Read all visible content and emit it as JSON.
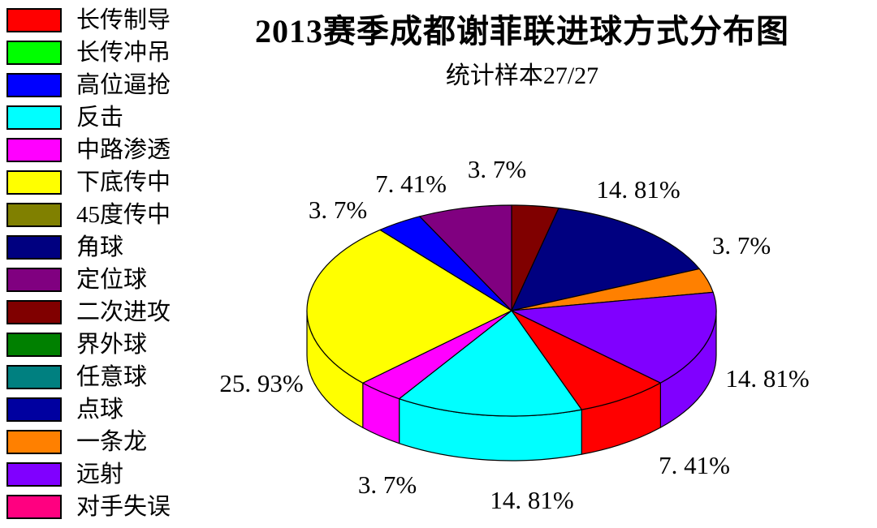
{
  "page": {
    "background": "#FFFFFF"
  },
  "chart_data": {
    "type": "pie",
    "style": "3d",
    "title": "2013赛季成都谢菲联进球方式分布图",
    "subtitle": "统计样本27/27",
    "sample_size": "27/27",
    "legend_position": "left",
    "legend": [
      {
        "label": "长传制导",
        "color": "#FF0000"
      },
      {
        "label": "长传冲吊",
        "color": "#00FF00"
      },
      {
        "label": "高位逼抢",
        "color": "#0000FF"
      },
      {
        "label": "反击",
        "color": "#00FFFF"
      },
      {
        "label": "中路渗透",
        "color": "#FF00FF"
      },
      {
        "label": "下底传中",
        "color": "#FFFF00"
      },
      {
        "label": "45度传中",
        "color": "#808000"
      },
      {
        "label": "角球",
        "color": "#000080"
      },
      {
        "label": "定位球",
        "color": "#800080"
      },
      {
        "label": "二次进攻",
        "color": "#800000"
      },
      {
        "label": "界外球",
        "color": "#008000"
      },
      {
        "label": "任意球",
        "color": "#008080"
      },
      {
        "label": "点球",
        "color": "#0000A0"
      },
      {
        "label": "一条龙",
        "color": "#FF8000"
      },
      {
        "label": "远射",
        "color": "#8000FF"
      },
      {
        "label": "对手失误",
        "color": "#FF0080"
      }
    ],
    "start_angle_deg": 90,
    "direction": "clockwise",
    "slices": [
      {
        "name": "二次进攻",
        "pct": 3.7,
        "label": "3. 7%",
        "color": "#800000"
      },
      {
        "name": "角球",
        "pct": 14.81,
        "label": "14. 81%",
        "color": "#000080"
      },
      {
        "name": "一条龙",
        "pct": 3.7,
        "label": "3. 7%",
        "color": "#FF8000"
      },
      {
        "name": "远射",
        "pct": 14.81,
        "label": "14. 81%",
        "color": "#8000FF"
      },
      {
        "name": "长传制导",
        "pct": 7.41,
        "label": "7. 41%",
        "color": "#FF0000"
      },
      {
        "name": "反击",
        "pct": 14.81,
        "label": "14. 81%",
        "color": "#00FFFF"
      },
      {
        "name": "中路渗透",
        "pct": 3.7,
        "label": "3. 7%",
        "color": "#FF00FF"
      },
      {
        "name": "下底传中",
        "pct": 25.93,
        "label": "25. 93%",
        "color": "#FFFF00"
      },
      {
        "name": "高位逼抢",
        "pct": 3.7,
        "label": "3. 7%",
        "color": "#0000FF"
      },
      {
        "name": "定位球",
        "pct": 7.41,
        "label": "7. 41%",
        "color": "#800080"
      }
    ]
  }
}
